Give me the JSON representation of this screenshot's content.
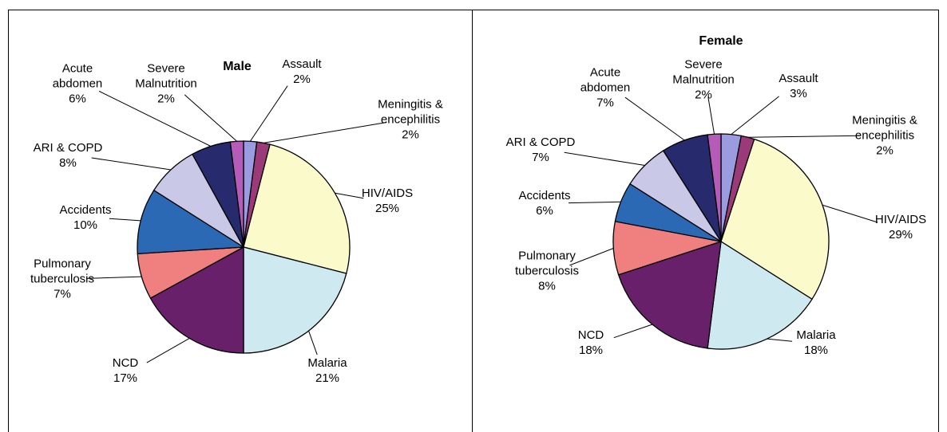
{
  "chart_data": [
    {
      "type": "pie",
      "title": "Male",
      "categories": [
        "Assault",
        "Meningitis & encephilitis",
        "HIV/AIDS",
        "Malaria",
        "NCD",
        "Pulmonary tuberculosis",
        "Accidents",
        "ARI & COPD",
        "Acute abdomen",
        "Severe Malnutrition"
      ],
      "values": [
        2,
        2,
        25,
        21,
        17,
        7,
        10,
        8,
        6,
        2
      ],
      "value_labels": [
        "2%",
        "2%",
        "25%",
        "21%",
        "17%",
        "7%",
        "10%",
        "8%",
        "6%",
        "2%"
      ],
      "colors": [
        "#9b9be0",
        "#9b3a78",
        "#fbfacb",
        "#cfe9f1",
        "#68206a",
        "#f08080",
        "#2c69b5",
        "#c9c8e6",
        "#282a6e",
        "#b45cb8"
      ]
    },
    {
      "type": "pie",
      "title": "Female",
      "categories": [
        "Assault",
        "Meningitis & encephilitis",
        "HIV/AIDS",
        "Malaria",
        "NCD",
        "Pulmonary tuberculosis",
        "Accidents",
        "ARI & COPD",
        "Acute abdomen",
        "Severe Malnutrition"
      ],
      "values": [
        3,
        2,
        29,
        18,
        18,
        8,
        6,
        7,
        7,
        2
      ],
      "value_labels": [
        "3%",
        "2%",
        "29%",
        "18%",
        "18%",
        "8%",
        "6%",
        "7%",
        "7%",
        "2%"
      ],
      "colors": [
        "#9b9be0",
        "#9b3a78",
        "#fbfacb",
        "#cfe9f1",
        "#68206a",
        "#f08080",
        "#2c69b5",
        "#c9c8e6",
        "#282a6e",
        "#b45cb8"
      ]
    }
  ]
}
